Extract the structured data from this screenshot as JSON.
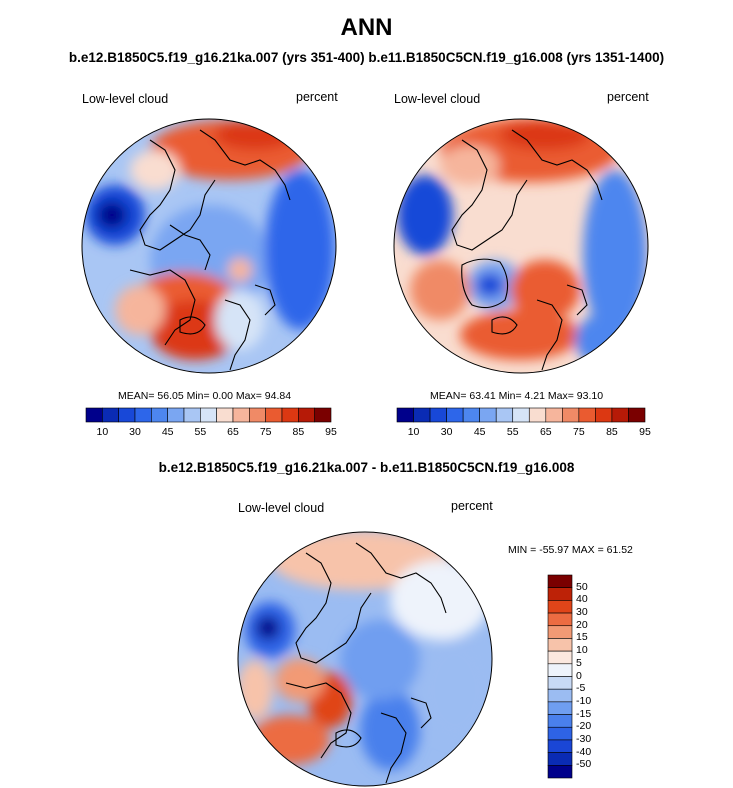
{
  "header": {
    "title": "ANN",
    "subtitle": "b.e12.B1850C5.f19_g16.21ka.007 (yrs 351-400) b.e11.B1850C5CN.f19_g16.008 (yrs 1351-1400)",
    "diff_title": "b.e12.B1850C5.f19_g16.21ka.007 - b.e11.B1850C5CN.f19_g16.008"
  },
  "colors": {
    "abs_scale": [
      "#00008b",
      "#0a2bb4",
      "#1848d8",
      "#2d66ea",
      "#4d86ef",
      "#7aa6f2",
      "#a9c6f4",
      "#d6e4f7",
      "#f9ddd0",
      "#f6b59c",
      "#f08a66",
      "#ea5b30",
      "#dc3812",
      "#b61a07",
      "#7a0000"
    ],
    "diff_scale": [
      "#00008b",
      "#0a2bb4",
      "#1a46d6",
      "#2e63e6",
      "#4a80ec",
      "#6f9ef0",
      "#9bbcf2",
      "#c8daf5",
      "#eef3fb",
      "#fbe8df",
      "#f7c3aa",
      "#f29a75",
      "#ec6c42",
      "#e04519",
      "#bd2207",
      "#7a0000"
    ],
    "land_outline": "#000000"
  },
  "chart_data": [
    {
      "type": "polar-map",
      "panel": "left",
      "title": "Low-level cloud",
      "units": "percent",
      "stats": {
        "mean": "56.05",
        "min": "0.00",
        "max": "94.84"
      },
      "stats_label": "MEAN=  56.05  Min=   0.00  Max=  94.84",
      "colorbar": {
        "ticks": [
          "10",
          "30",
          "45",
          "55",
          "65",
          "75",
          "85",
          "95"
        ]
      }
    },
    {
      "type": "polar-map",
      "panel": "right",
      "title": "Low-level cloud",
      "units": "percent",
      "stats": {
        "mean": "63.41",
        "min": "4.21",
        "max": "93.10"
      },
      "stats_label": "MEAN=  63.41  Min=   4.21  Max=  93.10",
      "colorbar": {
        "ticks": [
          "10",
          "30",
          "45",
          "55",
          "65",
          "75",
          "85",
          "95"
        ]
      }
    },
    {
      "type": "polar-map",
      "panel": "difference",
      "title": "Low-level cloud",
      "units": "percent",
      "stats": {
        "min": "-55.97",
        "max": "61.52"
      },
      "stats_label": "MIN = -55.97 MAX =  61.52",
      "colorbar": {
        "ticks": [
          "50",
          "40",
          "30",
          "20",
          "15",
          "10",
          "5",
          "0",
          "-5",
          "-10",
          "-15",
          "-20",
          "-30",
          "-40",
          "-50"
        ]
      }
    }
  ]
}
